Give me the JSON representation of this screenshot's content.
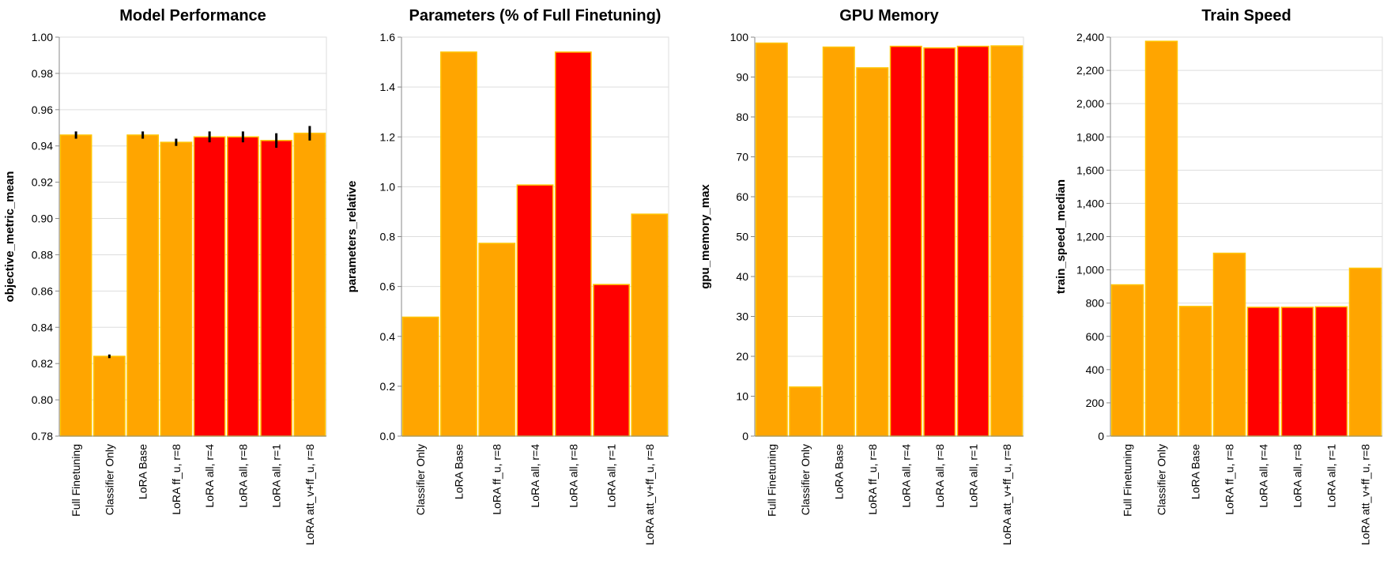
{
  "chart_data": [
    {
      "type": "bar",
      "title": "Model Performance",
      "y_label": "objective_metric_mean",
      "categories": [
        "Full Finetuning",
        "Classifier Only",
        "LoRA Base",
        "LoRA ff_u, r=8",
        "LoRA all, r=4",
        "LoRA all, r=8",
        "LoRA all, r=1",
        "LoRA att_v+ff_u, r=8"
      ],
      "values": [
        0.946,
        0.824,
        0.946,
        0.942,
        0.945,
        0.945,
        0.943,
        0.947
      ],
      "errors": [
        0.002,
        0.001,
        0.002,
        0.002,
        0.003,
        0.003,
        0.004,
        0.004
      ],
      "colors": [
        "#ffa500",
        "#ffa500",
        "#ffa500",
        "#ffa500",
        "#ff0000",
        "#ff0000",
        "#ff0000",
        "#ffa500"
      ],
      "ylim": [
        0.78,
        1.0
      ],
      "yticks": [
        0.78,
        {
          "value": 0.8,
          "label": "0.80"
        },
        0.82,
        0.84,
        0.86,
        0.88,
        {
          "value": 0.9,
          "label": "0.90"
        },
        0.92,
        0.94,
        0.96,
        0.98,
        {
          "value": 1.0,
          "label": "1.00"
        }
      ],
      "grid": true
    },
    {
      "type": "bar",
      "title": "Parameters (% of Full Finetuning)",
      "y_label": "parameters_relative",
      "categories": [
        "Classifier Only",
        "LoRA Base",
        "LoRA ff_u, r=8",
        "LoRA all, r=4",
        "LoRA all, r=8",
        "LoRA all, r=1",
        "LoRA att_v+ff_u, r=8"
      ],
      "values": [
        0.477,
        1.54,
        0.773,
        1.007,
        1.54,
        0.608,
        0.89
      ],
      "colors": [
        "#ffa500",
        "#ffa500",
        "#ffa500",
        "#ff0000",
        "#ff0000",
        "#ff0000",
        "#ffa500"
      ],
      "ylim": [
        0,
        1.6
      ],
      "yticks": [
        {
          "value": 0,
          "label": "0.0"
        },
        0.2,
        0.4,
        0.6,
        0.8,
        {
          "value": 1.0,
          "label": "1.0"
        },
        1.2,
        1.4,
        1.6
      ],
      "grid": true
    },
    {
      "type": "bar",
      "title": "GPU Memory",
      "y_label": "gpu_memory_max",
      "categories": [
        "Full Finetuning",
        "Classifier Only",
        "LoRA Base",
        "LoRA ff_u, r=8",
        "LoRA all, r=4",
        "LoRA all, r=8",
        "LoRA all, r=1",
        "LoRA att_v+ff_u, r=8"
      ],
      "values": [
        98.5,
        12.3,
        97.5,
        92.3,
        97.7,
        97.3,
        97.7,
        97.8
      ],
      "colors": [
        "#ffa500",
        "#ffa500",
        "#ffa500",
        "#ffa500",
        "#ff0000",
        "#ff0000",
        "#ff0000",
        "#ffa500"
      ],
      "ylim": [
        0,
        100
      ],
      "yticks": [
        0,
        10,
        20,
        30,
        40,
        50,
        60,
        70,
        80,
        90,
        100
      ],
      "grid": true
    },
    {
      "type": "bar",
      "title": "Train Speed",
      "y_label": "train_speed_median",
      "categories": [
        "Full Finetuning",
        "Classifier Only",
        "LoRA Base",
        "LoRA ff_u, r=8",
        "LoRA all, r=4",
        "LoRA all, r=8",
        "LoRA all, r=1",
        "LoRA att_v+ff_u, r=8"
      ],
      "values": [
        910,
        2375,
        780,
        1100,
        775,
        775,
        778,
        1010
      ],
      "colors": [
        "#ffa500",
        "#ffa500",
        "#ffa500",
        "#ffa500",
        "#ff0000",
        "#ff0000",
        "#ff0000",
        "#ffa500"
      ],
      "ylim": [
        0,
        2400
      ],
      "yticks": [
        0,
        200,
        400,
        600,
        800,
        {
          "value": 1000,
          "label": "1,000"
        },
        {
          "value": 1200,
          "label": "1,200"
        },
        {
          "value": 1400,
          "label": "1,400"
        },
        {
          "value": 1600,
          "label": "1,600"
        },
        {
          "value": 1800,
          "label": "1,800"
        },
        {
          "value": 2000,
          "label": "2,000"
        },
        {
          "value": 2200,
          "label": "2,200"
        },
        {
          "value": 2400,
          "label": "2,400"
        }
      ],
      "grid": true
    }
  ]
}
